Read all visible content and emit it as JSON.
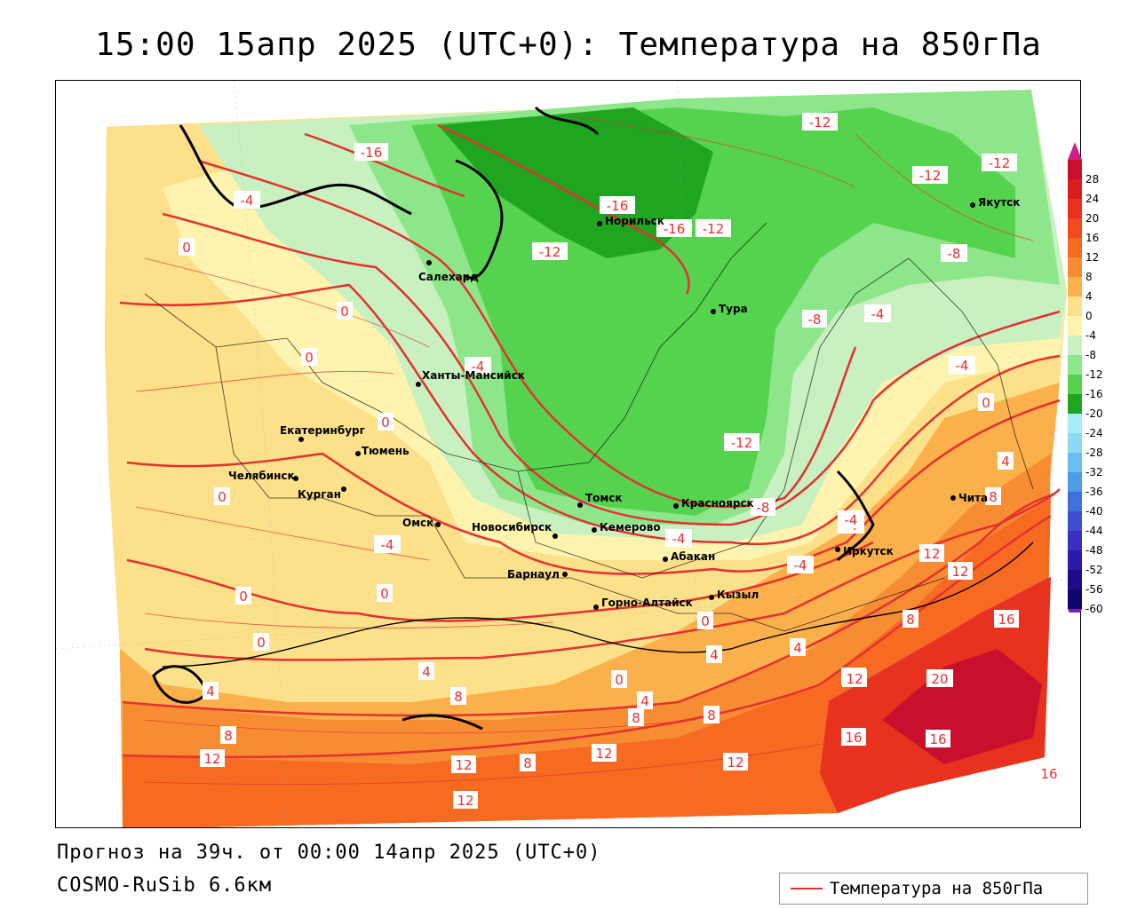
{
  "title": "15:00 15апр 2025 (UTC+0): Температура на 850гПа",
  "footer": {
    "forecast": "Прогноз на 39ч. от 00:00 14апр 2025 (UTC+0)",
    "model": "COSMO-RuSib 6.6км"
  },
  "legend": {
    "label": "Температура на 850гПа",
    "line_color": "#e53030"
  },
  "colors": {
    "contour": "#e53030",
    "border": "#000000"
  },
  "scale": {
    "values": [
      "28",
      "24",
      "20",
      "16",
      "12",
      "8",
      "4",
      "0",
      "-4",
      "-8",
      "-12",
      "-16",
      "-20",
      "-24",
      "-28",
      "-32",
      "-36",
      "-40",
      "-44",
      "-48",
      "-52",
      "-56",
      "-60"
    ],
    "colors": [
      "#c8102e",
      "#d91c1c",
      "#e8321e",
      "#f04a1e",
      "#f66a22",
      "#f88c32",
      "#fbb04c",
      "#fde08a",
      "#fff3b0",
      "#c8f0c0",
      "#8ee68a",
      "#55d34f",
      "#1fa51f",
      "#a8ecf8",
      "#8fd8f4",
      "#6bbcef",
      "#4e9be8",
      "#4070d9",
      "#3d4ed0",
      "#3a2fc0",
      "#2c1aa8",
      "#1d0b8a",
      "#10056e"
    ],
    "top_color": "#d0208a",
    "bottom_color": "#7a1fb0"
  },
  "cities": [
    {
      "name": "Норильск"
    },
    {
      "name": "Якутск"
    },
    {
      "name": "Салехард"
    },
    {
      "name": "Тура"
    },
    {
      "name": "Ханты-Мансийск"
    },
    {
      "name": "Екатеринбург"
    },
    {
      "name": "Тюмень"
    },
    {
      "name": "Челябинск"
    },
    {
      "name": "Курган"
    },
    {
      "name": "Омск"
    },
    {
      "name": "Новосибирск"
    },
    {
      "name": "Томск"
    },
    {
      "name": "Красноярск"
    },
    {
      "name": "Кемерово"
    },
    {
      "name": "Абакан"
    },
    {
      "name": "Барнаул"
    },
    {
      "name": "Иркутск"
    },
    {
      "name": "Чита"
    },
    {
      "name": "Горно-Алтайск"
    },
    {
      "name": "Кызыл"
    }
  ],
  "isotherm_labels": [
    "-16",
    "-4",
    "0",
    "0",
    "0",
    "-4",
    "0",
    "0",
    "-16",
    "-16",
    "-12",
    "-12",
    "-12",
    "-12",
    "-12",
    "-8",
    "-8",
    "-4",
    "-4",
    "0",
    "4",
    "8",
    "-12",
    "-8",
    "-4",
    "-4",
    "-4",
    "-4",
    "0",
    "0",
    "0",
    "0",
    "4",
    "4",
    "8",
    "8",
    "12",
    "12",
    "12",
    "12",
    "8",
    "12",
    "8",
    "4",
    "0",
    "4",
    "8",
    "4",
    "12",
    "16",
    "20",
    "16",
    "16",
    "12",
    "12",
    "12",
    "8",
    "16",
    "-4"
  ]
}
